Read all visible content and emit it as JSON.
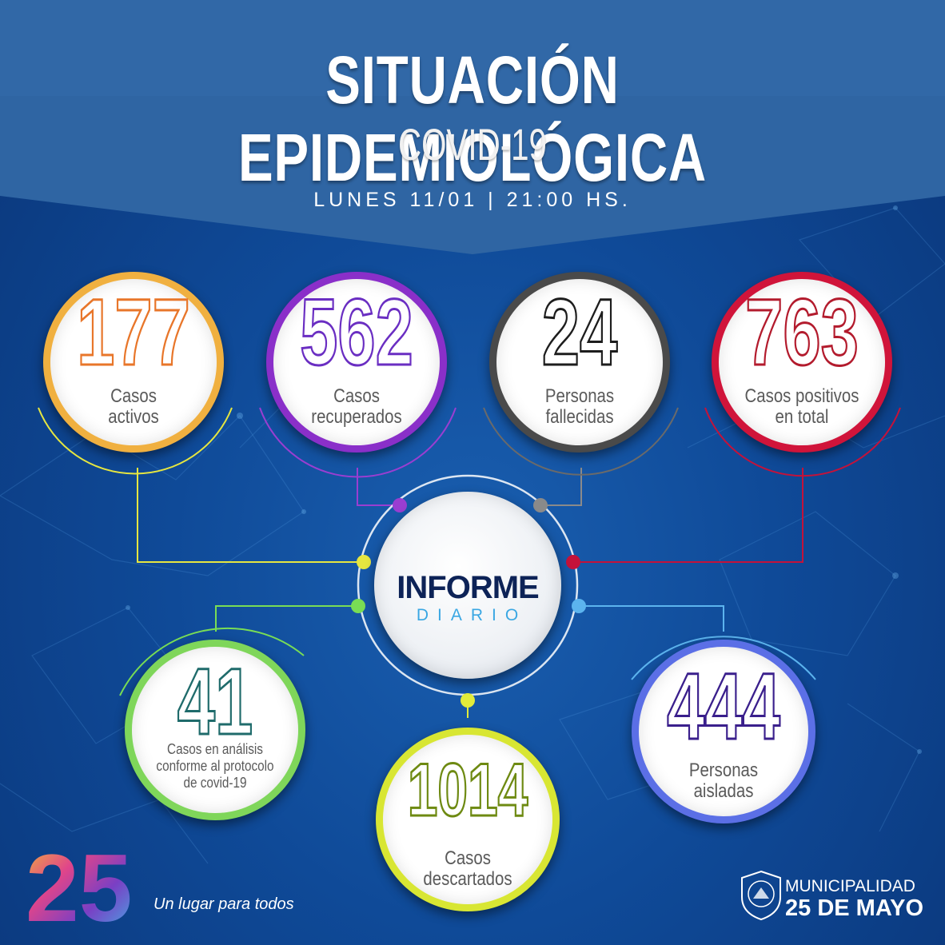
{
  "header": {
    "title": "SITUACIÓN EPIDEMIOLÓGICA",
    "subtitle": "COVID-19",
    "date": "LUNES 11/01 | 21:00 HS."
  },
  "stats": [
    {
      "value": "177",
      "label_lines": [
        "Casos",
        "activos"
      ],
      "color": "#e8762a",
      "ring": "#f0b040"
    },
    {
      "value": "562",
      "label_lines": [
        "Casos",
        "recuperados"
      ],
      "color": "#6a2ec2",
      "ring": "#8a2fc9"
    },
    {
      "value": "24",
      "label_lines": [
        "Personas",
        "fallecidas"
      ],
      "color": "#1d1d1d",
      "ring": "#4a4a4a"
    },
    {
      "value": "763",
      "label_lines": [
        "Casos positivos",
        "en total"
      ],
      "color": "#b31b2d",
      "ring": "#d0143a"
    },
    {
      "value": "41",
      "label_lines": [
        "Casos en análisis",
        "conforme al protocolo",
        "de covid-19"
      ],
      "color": "#1f6b6b",
      "ring": "#7fd65a"
    },
    {
      "value": "1014",
      "label_lines": [
        "Casos",
        "descartados"
      ],
      "color": "#6e8a12",
      "ring": "#d8e633"
    },
    {
      "value": "444",
      "label_lines": [
        "Personas",
        "aisladas"
      ],
      "color": "#3a1f8c",
      "ring": "#5b6fe6"
    }
  ],
  "center": {
    "title": "INFORME",
    "subtitle": "DIARIO"
  },
  "footer": {
    "logo_text": "25",
    "tagline": "Un lugar para todos",
    "municipality_line1": "MUNICIPALIDAD",
    "municipality_line2": "25 DE MAYO"
  },
  "colors": {
    "background": "#0f4a98",
    "banner": "#2f65a3",
    "connector_yellow": "#e6e640",
    "connector_purple": "#9a3ed1",
    "connector_gray": "#8a8a8a",
    "connector_red": "#c4123a",
    "connector_green": "#79dd55",
    "connector_lightyellow": "#e2ec3a",
    "connector_lightblue": "#5cb4ee"
  }
}
